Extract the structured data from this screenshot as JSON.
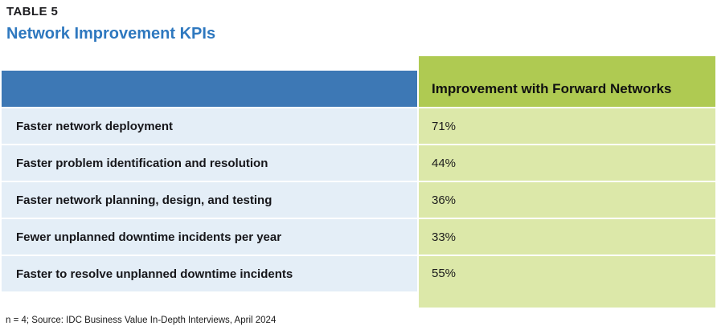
{
  "table_label": "TABLE 5",
  "title": "Network Improvement KPIs",
  "table": {
    "value_column_header": "Improvement with Forward Networks",
    "rows": [
      {
        "kpi": "Faster network deployment",
        "value": "71%"
      },
      {
        "kpi": "Faster problem identification and resolution",
        "value": "44%"
      },
      {
        "kpi": "Faster network planning, design, and testing",
        "value": "36%"
      },
      {
        "kpi": "Fewer unplanned downtime incidents per year",
        "value": "33%"
      },
      {
        "kpi": "Faster to resolve unplanned downtime incidents",
        "value": "55%"
      }
    ]
  },
  "footnote": "n = 4; Source: IDC Business Value In-Depth Interviews, April 2024",
  "colors": {
    "header_blue": "#3d78b5",
    "row_light_blue": "#e4eef7",
    "value_header_green": "#afca52",
    "value_cell_green": "#dce8a9",
    "title_blue": "#2e78bf"
  }
}
